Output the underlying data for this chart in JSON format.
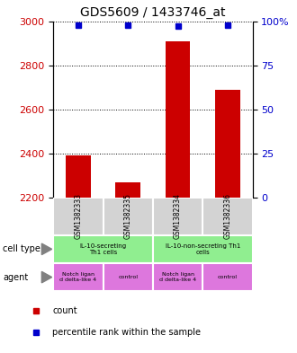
{
  "title": "GDS5609 / 1433746_at",
  "samples": [
    "GSM1382333",
    "GSM1382335",
    "GSM1382334",
    "GSM1382336"
  ],
  "bar_values": [
    2390,
    2270,
    2910,
    2690
  ],
  "percentile_values": [
    98,
    98,
    97,
    98
  ],
  "bar_color": "#cc0000",
  "percentile_color": "#0000cc",
  "ylim_left": [
    2200,
    3000
  ],
  "ylim_right": [
    0,
    100
  ],
  "yticks_left": [
    2200,
    2400,
    2600,
    2800,
    3000
  ],
  "yticks_right": [
    0,
    25,
    50,
    75,
    100
  ],
  "ytick_labels_right": [
    "0",
    "25",
    "50",
    "75",
    "100%"
  ],
  "left_axis_color": "#cc0000",
  "right_axis_color": "#0000cc",
  "plot_bg_color": "#ffffff",
  "sample_bg_color": "#d3d3d3",
  "cell_type_color": "#90ee90",
  "agent_color": "#dd77dd",
  "cell_types": [
    {
      "text": "IL-10-secreting\nTh1 cells",
      "start": 0,
      "end": 2
    },
    {
      "text": "IL-10-non-secreting Th1\ncells",
      "start": 2,
      "end": 4
    }
  ],
  "agents": [
    {
      "text": "Notch ligan\nd delta-like 4",
      "start": 0,
      "end": 1
    },
    {
      "text": "control",
      "start": 1,
      "end": 2
    },
    {
      "text": "Notch ligan\nd delta-like 4",
      "start": 2,
      "end": 3
    },
    {
      "text": "control",
      "start": 3,
      "end": 4
    }
  ]
}
